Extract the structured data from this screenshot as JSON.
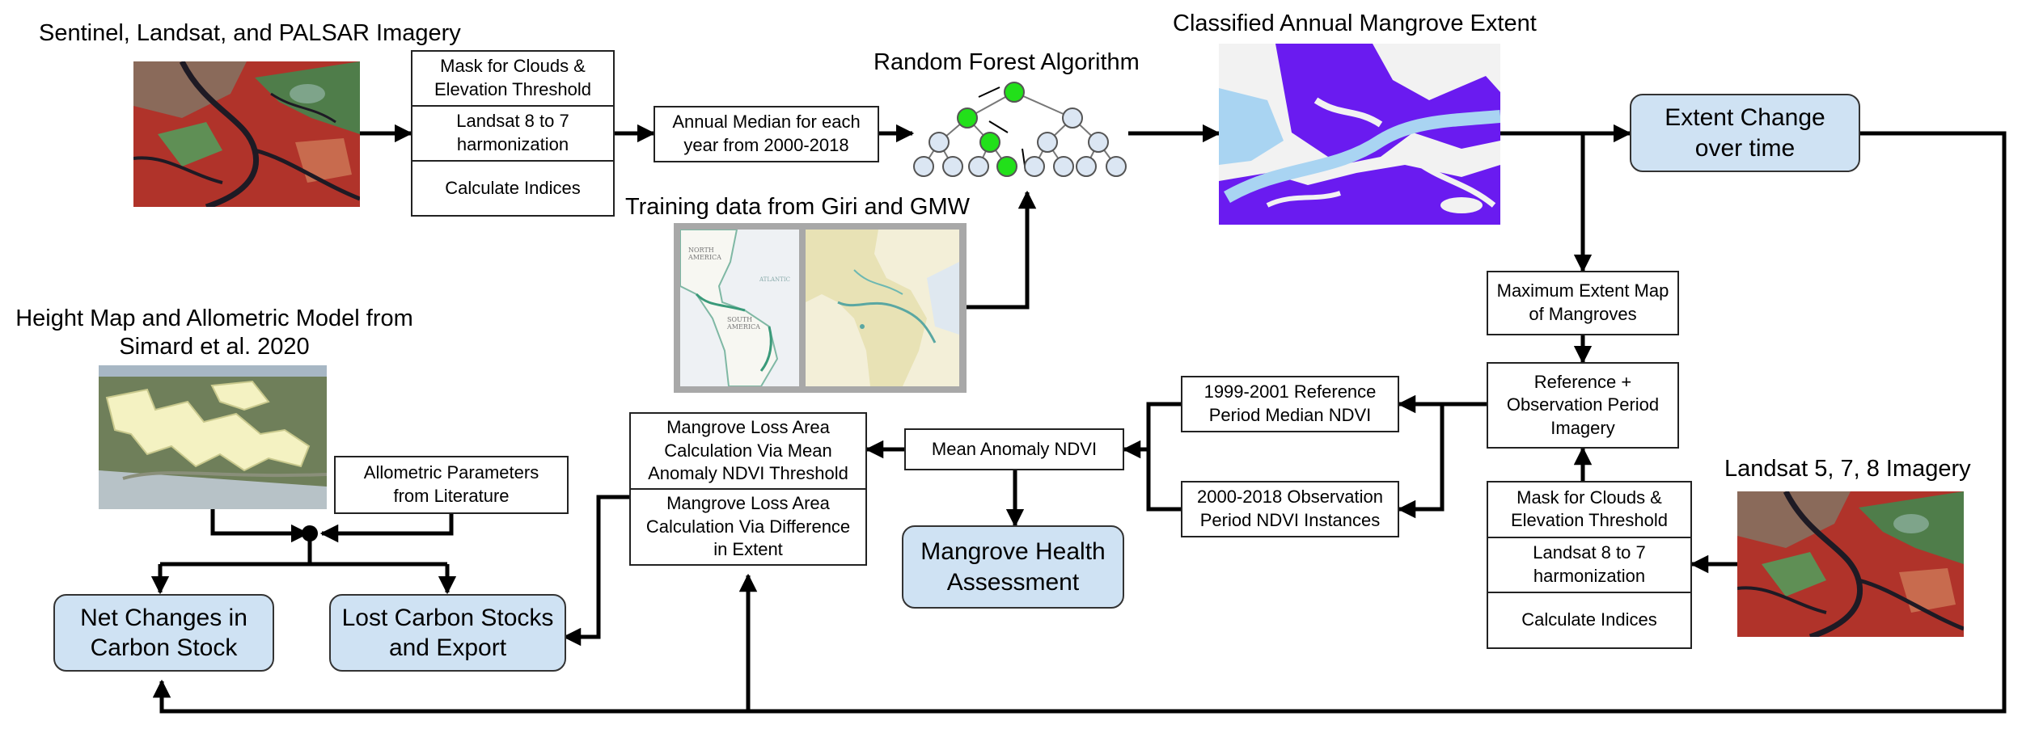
{
  "titles": {
    "imagery_top": "Sentinel, Landsat, and PALSAR Imagery",
    "random_forest": "Random Forest Algorithm",
    "classified": "Classified Annual Mangrove Extent",
    "training": "Training data from Giri and GMW",
    "height_map": "Height Map and Allometric Model from\nSimard et al. 2020",
    "landsat_right": "Landsat 5, 7, 8 Imagery"
  },
  "preprocess_top": [
    "Mask for Clouds &\nElevation Threshold",
    "Landsat 8 to 7\nharmonization",
    "Calculate Indices"
  ],
  "preprocess_right": [
    "Mask for Clouds &\nElevation Threshold",
    "Landsat 8 to 7\nharmonization",
    "Calculate Indices"
  ],
  "annual_median": "Annual Median for each\nyear from 2000-2018",
  "max_extent": "Maximum Extent Map\nof Mangroves",
  "reference_obs": "Reference +\nObservation Period\nImagery",
  "ref_period": "1999-2001 Reference\nPeriod Median NDVI",
  "obs_period": "2000-2018 Observation\nPeriod NDVI Instances",
  "mean_anomaly": "Mean Anomaly NDVI",
  "loss_area": [
    "Mangrove Loss Area\nCalculation Via Mean\nAnomaly NDVI Threshold",
    "Mangrove Loss Area\nCalculation Via Difference\nin Extent"
  ],
  "allometric": "Allometric Parameters\nfrom Literature",
  "outputs": {
    "extent_change": "Extent Change\nover time",
    "health": "Mangrove Health\nAssessment",
    "net_changes": "Net Changes in\nCarbon Stock",
    "lost_carbon": "Lost Carbon Stocks\nand Export"
  },
  "map_labels": {
    "north_america": "NORTH\nAMERICA",
    "atlantic": "ATLANTIC",
    "south_america": "SOUTH\nAMERICA"
  },
  "colors": {
    "output_fill": "#cfe2f3",
    "tree_active": "#22e01a",
    "tree_inactive": "#dbe6f3",
    "mangrove_class": "#6a1bf0",
    "water": "#a9d4f2"
  }
}
